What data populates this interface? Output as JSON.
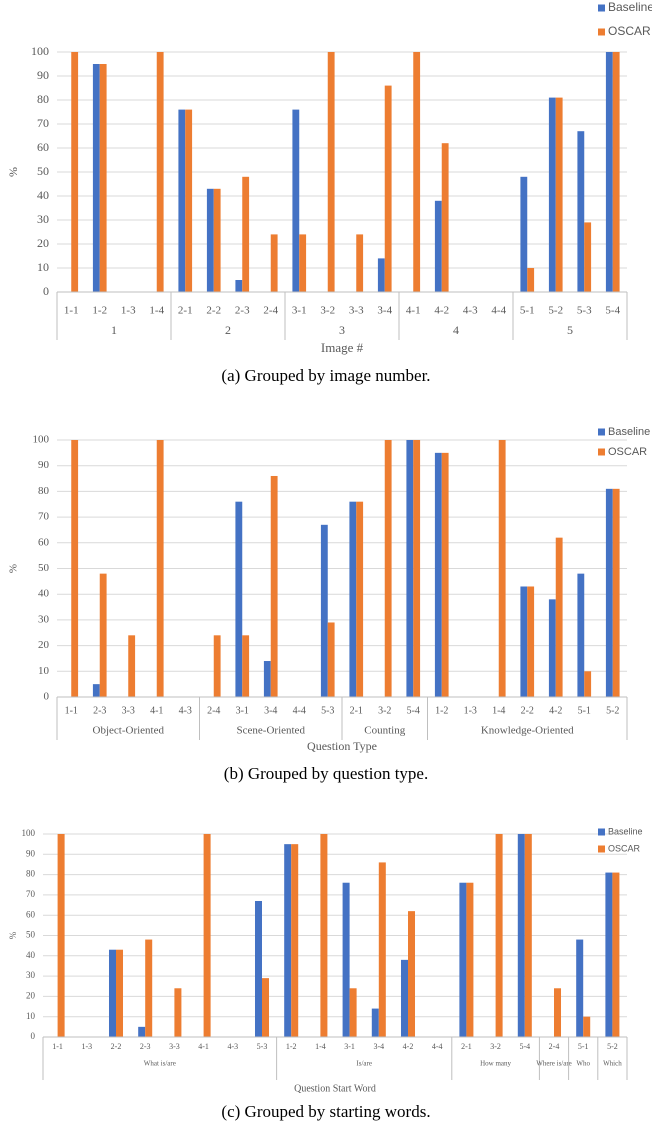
{
  "chart_data": [
    {
      "type": "bar",
      "caption": "(a) Grouped by image number.",
      "x_label": "Image #",
      "y_label": "%",
      "ylim": [
        0,
        100
      ],
      "yticks": [
        0,
        10,
        20,
        30,
        40,
        50,
        60,
        70,
        80,
        90,
        100
      ],
      "grid": true,
      "legend": "top-right",
      "groups": [
        {
          "name": "1",
          "categories": [
            "1-1",
            "1-2",
            "1-3",
            "1-4"
          ]
        },
        {
          "name": "2",
          "categories": [
            "2-1",
            "2-2",
            "2-3",
            "2-4"
          ]
        },
        {
          "name": "3",
          "categories": [
            "3-1",
            "3-2",
            "3-3",
            "3-4"
          ]
        },
        {
          "name": "4",
          "categories": [
            "4-1",
            "4-2",
            "4-3",
            "4-4"
          ]
        },
        {
          "name": "5",
          "categories": [
            "5-1",
            "5-2",
            "5-3",
            "5-4"
          ]
        }
      ],
      "series": [
        {
          "name": "Baseline",
          "color": "#4472c4",
          "values": [
            0,
            95,
            0,
            0,
            76,
            43,
            5,
            0,
            76,
            0,
            0,
            14,
            0,
            38,
            0,
            0,
            48,
            81,
            67,
            100
          ]
        },
        {
          "name": "OSCAR",
          "color": "#ed7d31",
          "values": [
            100,
            95,
            0,
            100,
            76,
            43,
            48,
            24,
            24,
            100,
            24,
            86,
            100,
            62,
            0,
            0,
            10,
            81,
            29,
            100
          ]
        }
      ]
    },
    {
      "type": "bar",
      "caption": "(b) Grouped by question type.",
      "x_label": "Question Type",
      "y_label": "%",
      "ylim": [
        0,
        100
      ],
      "yticks": [
        0,
        10,
        20,
        30,
        40,
        50,
        60,
        70,
        80,
        90,
        100
      ],
      "grid": true,
      "legend": "top-right",
      "groups": [
        {
          "name": "Object-Oriented",
          "categories": [
            "1-1",
            "2-3",
            "3-3",
            "4-1",
            "4-3"
          ]
        },
        {
          "name": "Scene-Oriented",
          "categories": [
            "2-4",
            "3-1",
            "3-4",
            "4-4",
            "5-3"
          ]
        },
        {
          "name": "Counting",
          "categories": [
            "2-1",
            "3-2",
            "5-4"
          ]
        },
        {
          "name": "Knowledge-Oriented",
          "categories": [
            "1-2",
            "1-3",
            "1-4",
            "2-2",
            "4-2",
            "5-1",
            "5-2"
          ]
        }
      ],
      "series": [
        {
          "name": "Baseline",
          "color": "#4472c4",
          "values": [
            0,
            5,
            0,
            0,
            0,
            0,
            76,
            14,
            0,
            67,
            76,
            0,
            100,
            95,
            0,
            0,
            43,
            38,
            48,
            81
          ]
        },
        {
          "name": "OSCAR",
          "color": "#ed7d31",
          "values": [
            100,
            48,
            24,
            100,
            0,
            24,
            24,
            86,
            0,
            29,
            76,
            100,
            100,
            95,
            0,
            100,
            43,
            62,
            10,
            81
          ]
        }
      ]
    },
    {
      "type": "bar",
      "caption": "(c) Grouped by starting words.",
      "x_label": "Question Start Word",
      "y_label": "%",
      "ylim": [
        0,
        100
      ],
      "yticks": [
        0,
        10,
        20,
        30,
        40,
        50,
        60,
        70,
        80,
        90,
        100
      ],
      "grid": true,
      "legend": "top-right",
      "groups": [
        {
          "name": "What is/are",
          "categories": [
            "1-1",
            "1-3",
            "2-2",
            "2-3",
            "3-3",
            "4-1",
            "4-3",
            "5-3"
          ]
        },
        {
          "name": "Is/are",
          "categories": [
            "1-2",
            "1-4",
            "3-1",
            "3-4",
            "4-2",
            "4-4"
          ]
        },
        {
          "name": "How many",
          "categories": [
            "2-1",
            "3-2",
            "5-4"
          ]
        },
        {
          "name": "Where is/are",
          "categories": [
            "2-4"
          ]
        },
        {
          "name": "Who",
          "categories": [
            "5-1"
          ]
        },
        {
          "name": "Which",
          "categories": [
            "5-2"
          ]
        }
      ],
      "series": [
        {
          "name": "Baseline",
          "color": "#4472c4",
          "values": [
            0,
            0,
            43,
            5,
            0,
            0,
            0,
            67,
            95,
            0,
            76,
            14,
            38,
            0,
            76,
            0,
            100,
            0,
            48,
            81
          ]
        },
        {
          "name": "OSCAR",
          "color": "#ed7d31",
          "values": [
            100,
            0,
            43,
            48,
            24,
            100,
            0,
            29,
            95,
            100,
            24,
            86,
            62,
            0,
            76,
            100,
            100,
            24,
            10,
            81
          ]
        }
      ]
    }
  ]
}
